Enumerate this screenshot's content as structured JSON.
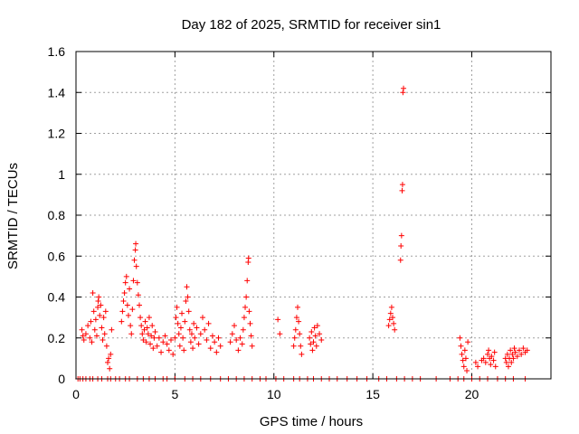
{
  "chart_data": {
    "type": "scatter",
    "title": "Day 182 of 2025, SRMTID for receiver sin1",
    "xlabel": "GPS time / hours",
    "ylabel": "SRMTID / TECUs",
    "xlim": [
      0,
      24
    ],
    "ylim": [
      0,
      1.6
    ],
    "xticks": [
      0,
      5,
      10,
      15,
      20
    ],
    "yticks": [
      0,
      0.2,
      0.4,
      0.6,
      0.8,
      1,
      1.2,
      1.4,
      1.6
    ],
    "ytick_labels": [
      "0",
      "0.2",
      "0.4",
      "0.6",
      "0.8",
      "1",
      "1.2",
      "1.4",
      "1.6"
    ],
    "xtick_labels": [
      "0",
      "5",
      "10",
      "15",
      "20"
    ],
    "grid": true,
    "marker": "+",
    "color": "#ff0000",
    "series": [
      {
        "name": "sin1",
        "points": [
          [
            0.1,
            0
          ],
          [
            0.2,
            0
          ],
          [
            0.35,
            0
          ],
          [
            0.5,
            0
          ],
          [
            0.7,
            0
          ],
          [
            0.85,
            0
          ],
          [
            1.1,
            0
          ],
          [
            1.3,
            0
          ],
          [
            1.6,
            0
          ],
          [
            1.75,
            0
          ],
          [
            2.0,
            0
          ],
          [
            2.2,
            0
          ],
          [
            2.5,
            0
          ],
          [
            2.7,
            0
          ],
          [
            3.1,
            0
          ],
          [
            3.4,
            0
          ],
          [
            3.7,
            0
          ],
          [
            4.0,
            0
          ],
          [
            4.4,
            0
          ],
          [
            4.6,
            0
          ],
          [
            5.0,
            0
          ],
          [
            5.5,
            0
          ],
          [
            5.9,
            0
          ],
          [
            6.3,
            0
          ],
          [
            6.8,
            0
          ],
          [
            7.3,
            0
          ],
          [
            7.7,
            0
          ],
          [
            8.1,
            0
          ],
          [
            8.5,
            0
          ],
          [
            8.9,
            0
          ],
          [
            9.3,
            0
          ],
          [
            9.6,
            0
          ],
          [
            10.1,
            0
          ],
          [
            10.5,
            0
          ],
          [
            11.0,
            0
          ],
          [
            11.3,
            0
          ],
          [
            11.7,
            0
          ],
          [
            12.0,
            0
          ],
          [
            12.4,
            0
          ],
          [
            12.8,
            0
          ],
          [
            13.2,
            0
          ],
          [
            13.7,
            0
          ],
          [
            14.2,
            0
          ],
          [
            14.7,
            0
          ],
          [
            15.3,
            0
          ],
          [
            15.7,
            0
          ],
          [
            16.2,
            0
          ],
          [
            16.6,
            0
          ],
          [
            17.0,
            0
          ],
          [
            17.4,
            0
          ],
          [
            18.2,
            0
          ],
          [
            18.9,
            0
          ],
          [
            19.3,
            0
          ],
          [
            19.6,
            0
          ],
          [
            20.0,
            0
          ],
          [
            20.4,
            0
          ],
          [
            20.8,
            0
          ],
          [
            21.3,
            0
          ],
          [
            21.7,
            0
          ],
          [
            22.1,
            0
          ],
          [
            22.7,
            0
          ],
          [
            0.3,
            0.24
          ],
          [
            0.35,
            0.21
          ],
          [
            0.4,
            0.19
          ],
          [
            0.5,
            0.22
          ],
          [
            0.6,
            0.26
          ],
          [
            0.7,
            0.2
          ],
          [
            0.75,
            0.28
          ],
          [
            0.8,
            0.18
          ],
          [
            0.85,
            0.42
          ],
          [
            0.9,
            0.33
          ],
          [
            0.95,
            0.24
          ],
          [
            1.0,
            0.29
          ],
          [
            1.05,
            0.21
          ],
          [
            1.1,
            0.35
          ],
          [
            1.12,
            0.38
          ],
          [
            1.15,
            0.4
          ],
          [
            1.2,
            0.31
          ],
          [
            1.25,
            0.36
          ],
          [
            1.3,
            0.25
          ],
          [
            1.35,
            0.19
          ],
          [
            1.4,
            0.3
          ],
          [
            1.45,
            0.22
          ],
          [
            1.5,
            0.33
          ],
          [
            1.55,
            0.16
          ],
          [
            1.6,
            0.08
          ],
          [
            1.65,
            0.1
          ],
          [
            1.7,
            0.05
          ],
          [
            1.75,
            0.12
          ],
          [
            1.8,
            0.24
          ],
          [
            2.3,
            0.28
          ],
          [
            2.35,
            0.33
          ],
          [
            2.4,
            0.38
          ],
          [
            2.45,
            0.42
          ],
          [
            2.5,
            0.47
          ],
          [
            2.55,
            0.5
          ],
          [
            2.6,
            0.36
          ],
          [
            2.65,
            0.31
          ],
          [
            2.7,
            0.44
          ],
          [
            2.75,
            0.26
          ],
          [
            2.8,
            0.22
          ],
          [
            2.85,
            0.34
          ],
          [
            2.9,
            0.48
          ],
          [
            2.95,
            0.58
          ],
          [
            3.0,
            0.63
          ],
          [
            3.02,
            0.66
          ],
          [
            3.05,
            0.55
          ],
          [
            3.1,
            0.47
          ],
          [
            3.15,
            0.41
          ],
          [
            3.2,
            0.36
          ],
          [
            3.25,
            0.3
          ],
          [
            3.3,
            0.26
          ],
          [
            3.35,
            0.22
          ],
          [
            3.4,
            0.19
          ],
          [
            3.45,
            0.24
          ],
          [
            3.5,
            0.28
          ],
          [
            3.55,
            0.18
          ],
          [
            3.6,
            0.25
          ],
          [
            3.65,
            0.22
          ],
          [
            3.7,
            0.3
          ],
          [
            3.75,
            0.17
          ],
          [
            3.8,
            0.21
          ],
          [
            3.85,
            0.26
          ],
          [
            3.9,
            0.15
          ],
          [
            3.95,
            0.2
          ],
          [
            4.0,
            0.23
          ],
          [
            4.1,
            0.16
          ],
          [
            4.2,
            0.2
          ],
          [
            4.3,
            0.13
          ],
          [
            4.4,
            0.18
          ],
          [
            4.5,
            0.21
          ],
          [
            4.6,
            0.17
          ],
          [
            4.7,
            0.14
          ],
          [
            4.8,
            0.19
          ],
          [
            4.9,
            0.12
          ],
          [
            5.0,
            0.2
          ],
          [
            5.05,
            0.3
          ],
          [
            5.1,
            0.35
          ],
          [
            5.15,
            0.27
          ],
          [
            5.2,
            0.22
          ],
          [
            5.25,
            0.16
          ],
          [
            5.3,
            0.25
          ],
          [
            5.35,
            0.32
          ],
          [
            5.4,
            0.2
          ],
          [
            5.45,
            0.14
          ],
          [
            5.5,
            0.28
          ],
          [
            5.55,
            0.38
          ],
          [
            5.6,
            0.45
          ],
          [
            5.65,
            0.4
          ],
          [
            5.7,
            0.33
          ],
          [
            5.75,
            0.24
          ],
          [
            5.8,
            0.18
          ],
          [
            5.85,
            0.22
          ],
          [
            5.9,
            0.15
          ],
          [
            5.95,
            0.27
          ],
          [
            6.0,
            0.2
          ],
          [
            6.1,
            0.25
          ],
          [
            6.2,
            0.17
          ],
          [
            6.3,
            0.22
          ],
          [
            6.4,
            0.3
          ],
          [
            6.5,
            0.24
          ],
          [
            6.6,
            0.19
          ],
          [
            6.7,
            0.27
          ],
          [
            6.8,
            0.15
          ],
          [
            6.9,
            0.21
          ],
          [
            7.0,
            0.18
          ],
          [
            7.1,
            0.13
          ],
          [
            7.2,
            0.2
          ],
          [
            7.3,
            0.16
          ],
          [
            7.8,
            0.18
          ],
          [
            7.9,
            0.22
          ],
          [
            8.0,
            0.26
          ],
          [
            8.1,
            0.19
          ],
          [
            8.2,
            0.14
          ],
          [
            8.3,
            0.2
          ],
          [
            8.4,
            0.17
          ],
          [
            8.45,
            0.24
          ],
          [
            8.5,
            0.3
          ],
          [
            8.55,
            0.35
          ],
          [
            8.6,
            0.4
          ],
          [
            8.65,
            0.48
          ],
          [
            8.7,
            0.57
          ],
          [
            8.72,
            0.59
          ],
          [
            8.75,
            0.33
          ],
          [
            8.8,
            0.27
          ],
          [
            8.85,
            0.21
          ],
          [
            8.9,
            0.16
          ],
          [
            10.2,
            0.29
          ],
          [
            10.3,
            0.22
          ],
          [
            11.0,
            0.16
          ],
          [
            11.05,
            0.2
          ],
          [
            11.1,
            0.24
          ],
          [
            11.15,
            0.3
          ],
          [
            11.2,
            0.35
          ],
          [
            11.25,
            0.28
          ],
          [
            11.3,
            0.22
          ],
          [
            11.35,
            0.16
          ],
          [
            11.4,
            0.12
          ],
          [
            11.8,
            0.2
          ],
          [
            11.85,
            0.17
          ],
          [
            11.9,
            0.23
          ],
          [
            11.95,
            0.14
          ],
          [
            12.0,
            0.18
          ],
          [
            12.05,
            0.25
          ],
          [
            12.1,
            0.21
          ],
          [
            12.15,
            0.16
          ],
          [
            12.2,
            0.26
          ],
          [
            12.3,
            0.22
          ],
          [
            12.4,
            0.19
          ],
          [
            15.8,
            0.26
          ],
          [
            15.85,
            0.29
          ],
          [
            15.9,
            0.32
          ],
          [
            15.95,
            0.35
          ],
          [
            16.0,
            0.3
          ],
          [
            16.05,
            0.27
          ],
          [
            16.1,
            0.24
          ],
          [
            16.4,
            0.58
          ],
          [
            16.42,
            0.65
          ],
          [
            16.45,
            0.7
          ],
          [
            16.48,
            0.92
          ],
          [
            16.5,
            0.95
          ],
          [
            16.52,
            1.4
          ],
          [
            16.55,
            1.42
          ],
          [
            19.4,
            0.2
          ],
          [
            19.45,
            0.16
          ],
          [
            19.5,
            0.12
          ],
          [
            19.55,
            0.09
          ],
          [
            19.6,
            0.06
          ],
          [
            19.65,
            0.14
          ],
          [
            19.7,
            0.1
          ],
          [
            19.75,
            0.04
          ],
          [
            19.8,
            0.18
          ],
          [
            20.2,
            0.08
          ],
          [
            20.3,
            0.06
          ],
          [
            20.5,
            0.09
          ],
          [
            20.6,
            0.1
          ],
          [
            20.7,
            0.08
          ],
          [
            20.8,
            0.12
          ],
          [
            20.85,
            0.14
          ],
          [
            20.9,
            0.1
          ],
          [
            20.95,
            0.07
          ],
          [
            21.0,
            0.11
          ],
          [
            21.1,
            0.09
          ],
          [
            21.15,
            0.13
          ],
          [
            21.2,
            0.06
          ],
          [
            21.7,
            0.1
          ],
          [
            21.75,
            0.08
          ],
          [
            21.8,
            0.12
          ],
          [
            21.85,
            0.06
          ],
          [
            21.9,
            0.1
          ],
          [
            21.95,
            0.14
          ],
          [
            22.0,
            0.08
          ],
          [
            22.05,
            0.12
          ],
          [
            22.1,
            0.1
          ],
          [
            22.15,
            0.15
          ],
          [
            22.2,
            0.13
          ],
          [
            22.3,
            0.11
          ],
          [
            22.4,
            0.14
          ],
          [
            22.5,
            0.12
          ],
          [
            22.6,
            0.15
          ],
          [
            22.7,
            0.13
          ],
          [
            22.8,
            0.14
          ]
        ]
      }
    ]
  }
}
